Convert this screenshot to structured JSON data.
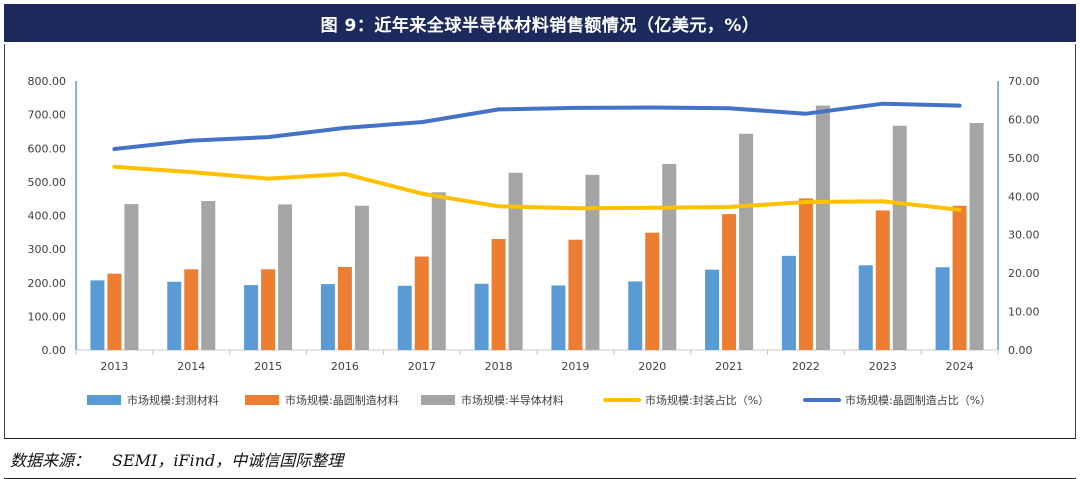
{
  "title": "图 9：近年来全球半导体材料销售额情况（亿美元，%）",
  "source": {
    "label": "数据来源：",
    "text": "SEMI，iFind，中诚信国际整理"
  },
  "colors": {
    "packaging_material": "#5b9bd5",
    "wafer_material": "#ed7d31",
    "semiconductor_material": "#a5a5a5",
    "packaging_share": "#ffc000",
    "wafer_share": "#4472c4"
  },
  "chart_data": {
    "type": "bar",
    "title": "近年来全球半导体材料销售额情况（亿美元，%）",
    "categories": [
      "2013",
      "2014",
      "2015",
      "2016",
      "2017",
      "2018",
      "2019",
      "2020",
      "2021",
      "2022",
      "2023",
      "2024"
    ],
    "series": [
      {
        "name": "市场规模:封测材料",
        "type": "bar",
        "axis": "left",
        "values": [
          207,
          203,
          193,
          196,
          191,
          197,
          192,
          204,
          239,
          280,
          252,
          246
        ]
      },
      {
        "name": "市场规模:晶圆制造材料",
        "type": "bar",
        "axis": "left",
        "values": [
          227,
          240,
          240,
          247,
          278,
          330,
          328,
          349,
          404,
          451,
          415,
          429
        ]
      },
      {
        "name": "市场规模:半导体材料",
        "type": "bar",
        "axis": "left",
        "values": [
          434,
          443,
          433,
          429,
          469,
          527,
          521,
          553,
          643,
          727,
          667,
          675
        ]
      },
      {
        "name": "市场规模:封装占比（%）",
        "type": "line",
        "axis": "right",
        "values": [
          47.7,
          46.3,
          44.6,
          45.8,
          40.7,
          37.4,
          36.9,
          37.0,
          37.2,
          38.5,
          38.7,
          36.5
        ]
      },
      {
        "name": "市场规模:晶圆制造占比（%）",
        "type": "line",
        "axis": "right",
        "values": [
          52.3,
          54.5,
          55.4,
          57.8,
          59.3,
          62.6,
          63.0,
          63.1,
          62.9,
          61.5,
          64.1,
          63.6
        ]
      }
    ],
    "y_left": {
      "range": [
        0,
        800
      ],
      "ticks": [
        "0.00",
        "100.00",
        "200.00",
        "300.00",
        "400.00",
        "500.00",
        "600.00",
        "700.00",
        "800.00"
      ]
    },
    "y_right": {
      "range": [
        0,
        70
      ],
      "ticks": [
        "0.00",
        "10.00",
        "20.00",
        "30.00",
        "40.00",
        "50.00",
        "60.00",
        "70.00"
      ]
    },
    "grid": false,
    "legend_position": "bottom"
  }
}
